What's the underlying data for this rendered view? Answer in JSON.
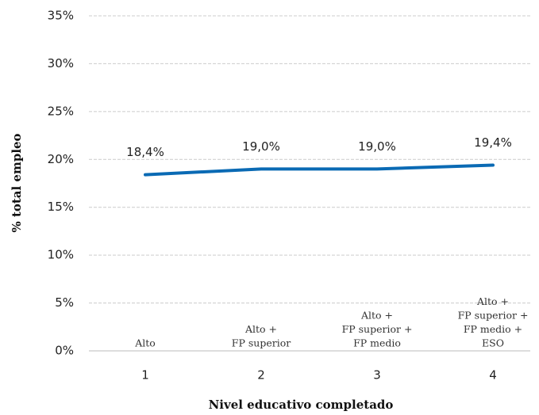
{
  "chart_data": {
    "type": "line",
    "x_label": "Nivel educativo completado",
    "y_label": "% total empleo",
    "categories": [
      "1",
      "2",
      "3",
      "4"
    ],
    "annotations": [
      [
        "Alto"
      ],
      [
        "Alto +",
        "FP superior"
      ],
      [
        "Alto +",
        "FP superior +",
        "FP medio"
      ],
      [
        "Alto +",
        "FP superior +",
        "FP medio +",
        "ESO"
      ]
    ],
    "series": [
      {
        "name": null,
        "color": "#0a6ab4",
        "values": [
          18.4,
          19.0,
          19.0,
          19.4
        ],
        "value_labels": [
          "18,4%",
          "19,0%",
          "19,0%",
          "19,4%"
        ]
      }
    ],
    "ylim": [
      0,
      35
    ],
    "yticks": [
      {
        "value": 0,
        "label": "0%"
      },
      {
        "value": 5,
        "label": "5%"
      },
      {
        "value": 10,
        "label": "10%"
      },
      {
        "value": 15,
        "label": "15%"
      },
      {
        "value": 20,
        "label": "20%"
      },
      {
        "value": 25,
        "label": "25%"
      },
      {
        "value": 30,
        "label": "30%"
      },
      {
        "value": 35,
        "label": "35%"
      }
    ],
    "grid": true
  }
}
